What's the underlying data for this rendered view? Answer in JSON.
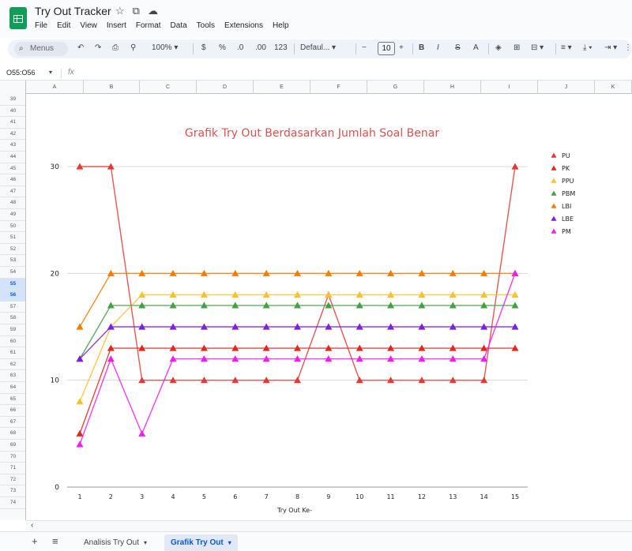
{
  "app": {
    "title": "Try Out Tracker",
    "menu": [
      "File",
      "Edit",
      "View",
      "Insert",
      "Format",
      "Data",
      "Tools",
      "Extensions",
      "Help"
    ]
  },
  "toolbar": {
    "search_placeholder": "Menus",
    "zoom": "100%",
    "currency": "$",
    "percent": "%",
    "dec_decrease": ".0",
    "dec_increase": ".00",
    "number_format": "123",
    "font": "Defaul...",
    "font_size": "10",
    "bold": "B",
    "italic": "I",
    "strike": "S",
    "text_color": "A"
  },
  "formula_bar": {
    "cell_ref": "O55:O56",
    "fx": "fx"
  },
  "columns": [
    "A",
    "B",
    "C",
    "D",
    "E",
    "F",
    "G",
    "H",
    "I",
    "J",
    "K"
  ],
  "rows": [
    "39",
    "40",
    "41",
    "42",
    "43",
    "44",
    "45",
    "46",
    "47",
    "48",
    "49",
    "50",
    "51",
    "52",
    "53",
    "54",
    "55",
    "56",
    "57",
    "58",
    "59",
    "60",
    "61",
    "62",
    "63",
    "64",
    "65",
    "66",
    "67",
    "68",
    "69",
    "70",
    "71",
    "72",
    "73",
    "74"
  ],
  "selected_rows": [
    "55",
    "56"
  ],
  "sheets": [
    {
      "label": "Analisis Try Out",
      "active": false
    },
    {
      "label": "Grafik Try Out",
      "active": true
    }
  ],
  "chart_data": {
    "type": "line",
    "title": "Grafik Try Out Berdasarkan Jumlah Soal Benar",
    "xlabel": "Try Out Ke-",
    "ylabel": "",
    "x": [
      1,
      2,
      3,
      4,
      5,
      6,
      7,
      8,
      9,
      10,
      11,
      12,
      13,
      14,
      15
    ],
    "ylim": [
      0,
      30
    ],
    "yticks": [
      0,
      10,
      20,
      30
    ],
    "grid": true,
    "legend_position": "right",
    "series": [
      {
        "name": "PU",
        "color": "#e53935",
        "values": [
          30,
          30,
          10,
          10,
          10,
          10,
          10,
          10,
          18,
          10,
          10,
          10,
          10,
          10,
          30
        ]
      },
      {
        "name": "PK",
        "color": "#e0281e",
        "values": [
          5,
          13,
          13,
          13,
          13,
          13,
          13,
          13,
          13,
          13,
          13,
          13,
          13,
          13,
          13
        ]
      },
      {
        "name": "PPU",
        "color": "#fbc02d",
        "values": [
          8,
          15,
          18,
          18,
          18,
          18,
          18,
          18,
          18,
          18,
          18,
          18,
          18,
          18,
          18
        ]
      },
      {
        "name": "PBM",
        "color": "#43a047",
        "values": [
          12,
          17,
          17,
          17,
          17,
          17,
          17,
          17,
          17,
          17,
          17,
          17,
          17,
          17,
          17
        ]
      },
      {
        "name": "LBI",
        "color": "#f57c00",
        "values": [
          15,
          20,
          20,
          20,
          20,
          20,
          20,
          20,
          20,
          20,
          20,
          20,
          20,
          20,
          20
        ]
      },
      {
        "name": "LBE",
        "color": "#7b1fe0",
        "values": [
          12,
          15,
          15,
          15,
          15,
          15,
          15,
          15,
          15,
          15,
          15,
          15,
          15,
          15,
          15
        ]
      },
      {
        "name": "PM",
        "color": "#ee1df0",
        "values": [
          4,
          12,
          5,
          12,
          12,
          12,
          12,
          12,
          12,
          12,
          12,
          12,
          12,
          12,
          20
        ]
      }
    ]
  }
}
